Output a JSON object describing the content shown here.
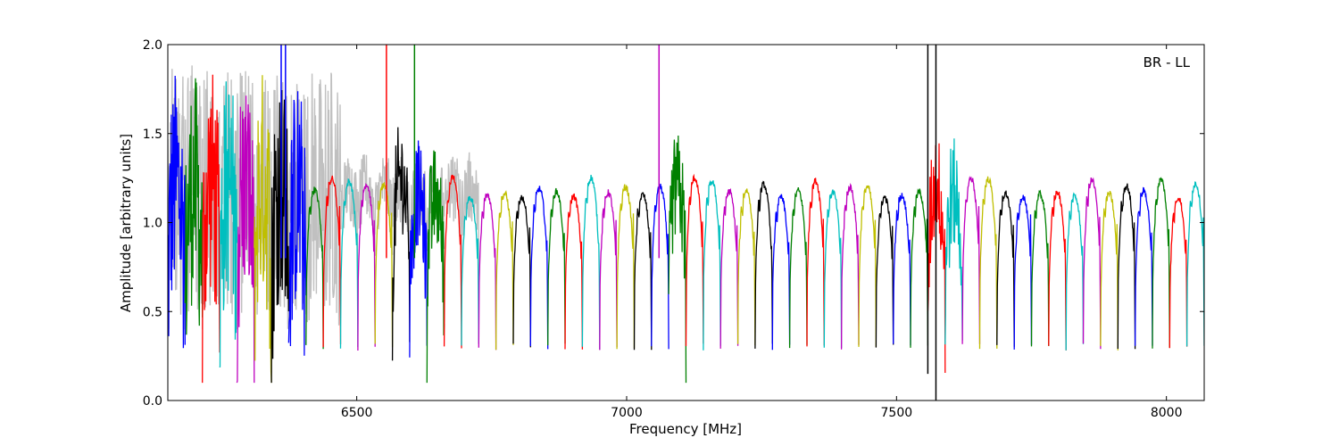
{
  "chart_data": {
    "type": "line",
    "xlabel": "Frequency [MHz]",
    "ylabel": "Amplitude [arbitrary units]",
    "annotation": "BR - LL",
    "xlim": [
      6150,
      8070
    ],
    "ylim": [
      0.0,
      2.0
    ],
    "xticks": [
      6500,
      7000,
      7500,
      8000
    ],
    "yticks": [
      0.0,
      0.5,
      1.0,
      1.5,
      2.0
    ],
    "xtick_labels": [
      "6500",
      "7000",
      "7500",
      "8000"
    ],
    "ytick_labels": [
      "0.0",
      "0.5",
      "1.0",
      "1.5",
      "2.0"
    ],
    "grid": false,
    "palette": [
      "#0000ff",
      "#008000",
      "#ff0000",
      "#00bfbf",
      "#bf00bf",
      "#bfbf00",
      "#000000"
    ],
    "reference_color": "#c0c0c0",
    "channel_width_mhz": 32,
    "channel_start_mhz": 6150,
    "channel_count": 60,
    "typical_channel_level": 1.2,
    "typical_channel_edge_level": 0.3,
    "spikes": [
      {
        "x": 6555,
        "ymax": 2.0,
        "color": "#ff0000"
      },
      {
        "x": 6607,
        "ymax": 2.0,
        "color": "#008000"
      },
      {
        "x": 7060,
        "ymax": 2.0,
        "color": "#bf00bf"
      },
      {
        "x": 7558,
        "ymin": 0.15,
        "ymax": 2.0,
        "color": "#000000"
      },
      {
        "x": 7573,
        "ymin": 0.0,
        "ymax": 2.0,
        "color": "#000000"
      },
      {
        "x": 6360,
        "ymax": 2.0,
        "color": "#0000ff"
      },
      {
        "x": 6368,
        "ymax": 2.0,
        "color": "#0000ff"
      }
    ]
  }
}
